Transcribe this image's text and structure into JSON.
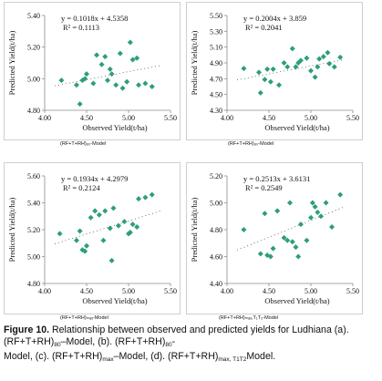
{
  "caption": {
    "label": "Figure 10.",
    "lines": [
      "Relationship between observed and predicted yields for Ludhiana (a).",
      "(RF+T+RH)",
      "80",
      "–Model, (b). (RF+T+RH)",
      "80",
      "-",
      "Model, (c). (RF+T+RH)",
      "max",
      "–Model, (d). (RF+T+RH)",
      "max, T1T2",
      "Model."
    ]
  },
  "chart_data": [
    {
      "type": "scatter",
      "panel": "a",
      "subcaption": "(RF+T+RH)₈₀-Model",
      "equation": "y = 0.1018x + 4.5358",
      "r2": "R² = 0.1113",
      "xlabel": "Observed Yield(t/ha)",
      "ylabel": "Predicted Yield(t/ha)",
      "xlim": [
        4.0,
        5.5
      ],
      "ylim": [
        4.8,
        5.4
      ],
      "xticks": [
        "4.00",
        "4.50",
        "5.00",
        "5.50"
      ],
      "yticks": [
        "4.80",
        "5.00",
        "5.20",
        "5.40"
      ],
      "marker_color": "#2e9e77",
      "points": [
        [
          4.2,
          4.99
        ],
        [
          4.38,
          4.96
        ],
        [
          4.42,
          4.84
        ],
        [
          4.45,
          4.99
        ],
        [
          4.48,
          5.0
        ],
        [
          4.5,
          5.03
        ],
        [
          4.58,
          4.97
        ],
        [
          4.62,
          5.15
        ],
        [
          4.68,
          5.09
        ],
        [
          4.72,
          5.14
        ],
        [
          4.75,
          4.99
        ],
        [
          4.78,
          5.06
        ],
        [
          4.8,
          5.03
        ],
        [
          4.85,
          4.96
        ],
        [
          4.9,
          5.16
        ],
        [
          4.93,
          4.94
        ],
        [
          4.98,
          4.98
        ],
        [
          5.02,
          5.23
        ],
        [
          5.05,
          5.12
        ],
        [
          5.1,
          5.13
        ],
        [
          5.12,
          4.96
        ],
        [
          5.2,
          4.97
        ],
        [
          5.28,
          4.95
        ]
      ],
      "trend": {
        "slope": 0.1018,
        "intercept": 4.5358
      }
    },
    {
      "type": "scatter",
      "panel": "b",
      "subcaption": "(RF+T+RH)₈₀-Model",
      "equation": "y = 0.2004x + 3.859",
      "r2": "R² = 0.2041",
      "xlabel": "Observed Yield(t/ha)",
      "ylabel": "Predicted Yield(t/ha)",
      "xlim": [
        4.0,
        5.5
      ],
      "ylim": [
        4.3,
        5.5
      ],
      "xticks": [
        "4.00",
        "4.50",
        "5.00",
        "5.50"
      ],
      "yticks": [
        "4.30",
        "4.50",
        "4.70",
        "4.90",
        "5.10",
        "5.30",
        "5.50"
      ],
      "marker_color": "#2e9e77",
      "points": [
        [
          4.2,
          4.83
        ],
        [
          4.38,
          4.78
        ],
        [
          4.4,
          4.52
        ],
        [
          4.45,
          4.69
        ],
        [
          4.48,
          4.82
        ],
        [
          4.52,
          4.66
        ],
        [
          4.55,
          4.82
        ],
        [
          4.62,
          4.62
        ],
        [
          4.68,
          4.9
        ],
        [
          4.72,
          4.85
        ],
        [
          4.78,
          5.08
        ],
        [
          4.82,
          4.85
        ],
        [
          4.85,
          4.9
        ],
        [
          4.88,
          4.93
        ],
        [
          4.95,
          4.96
        ],
        [
          5.0,
          4.8
        ],
        [
          5.05,
          4.72
        ],
        [
          5.08,
          4.85
        ],
        [
          5.1,
          4.95
        ],
        [
          5.15,
          4.98
        ],
        [
          5.2,
          5.03
        ],
        [
          5.22,
          4.89
        ],
        [
          5.28,
          4.85
        ],
        [
          5.35,
          4.97
        ]
      ],
      "trend": {
        "slope": 0.2004,
        "intercept": 3.859
      }
    },
    {
      "type": "scatter",
      "panel": "c",
      "subcaption": "(RF+T+RH)ₘₐₓ-Model",
      "equation": "y = 0.1934x + 4.2979",
      "r2": "R² = 0.2124",
      "xlabel": "Observed Yield(t/ha)",
      "ylabel": "Predicted Yield(t/ha)",
      "xlim": [
        4.0,
        5.5
      ],
      "ylim": [
        4.8,
        5.6
      ],
      "xticks": [
        "4.00",
        "4.50",
        "5.00",
        "5.50"
      ],
      "yticks": [
        "4.80",
        "5.00",
        "5.20",
        "5.40",
        "5.60"
      ],
      "marker_color": "#2e9e77",
      "points": [
        [
          4.18,
          5.17
        ],
        [
          4.38,
          5.12
        ],
        [
          4.42,
          5.19
        ],
        [
          4.45,
          5.05
        ],
        [
          4.48,
          5.04
        ],
        [
          4.5,
          5.08
        ],
        [
          4.55,
          5.29
        ],
        [
          4.6,
          5.34
        ],
        [
          4.65,
          5.31
        ],
        [
          4.7,
          5.12
        ],
        [
          4.72,
          5.34
        ],
        [
          4.78,
          5.21
        ],
        [
          4.8,
          4.97
        ],
        [
          4.82,
          5.36
        ],
        [
          4.88,
          5.23
        ],
        [
          4.95,
          5.26
        ],
        [
          5.0,
          5.17
        ],
        [
          5.02,
          5.18
        ],
        [
          5.05,
          5.24
        ],
        [
          5.1,
          5.22
        ],
        [
          5.12,
          5.43
        ],
        [
          5.2,
          5.44
        ],
        [
          5.28,
          5.46
        ]
      ],
      "trend": {
        "slope": 0.1934,
        "intercept": 4.2979
      }
    },
    {
      "type": "scatter",
      "panel": "d",
      "subcaption": "(RF+T+RH)ₘₐₓ,T₁T₂-Model",
      "equation": "y = 0.2513x + 3.6131",
      "r2": "R² = 0.2549",
      "xlabel": "Observed Yield(t/ha)",
      "ylabel": "Predicted Yield(t/ha)",
      "xlim": [
        4.0,
        5.5
      ],
      "ylim": [
        4.4,
        5.2
      ],
      "xticks": [
        "4.00",
        "4.50",
        "5.00",
        "5.50"
      ],
      "yticks": [
        "4.40",
        "4.60",
        "4.80",
        "5.00",
        "5.20"
      ],
      "marker_color": "#2e9e77",
      "points": [
        [
          4.2,
          4.8
        ],
        [
          4.4,
          4.62
        ],
        [
          4.45,
          4.92
        ],
        [
          4.48,
          4.61
        ],
        [
          4.52,
          4.6
        ],
        [
          4.55,
          4.66
        ],
        [
          4.6,
          4.94
        ],
        [
          4.68,
          4.74
        ],
        [
          4.72,
          4.72
        ],
        [
          4.75,
          5.0
        ],
        [
          4.78,
          4.71
        ],
        [
          4.82,
          4.67
        ],
        [
          4.85,
          4.6
        ],
        [
          4.88,
          4.84
        ],
        [
          4.95,
          4.72
        ],
        [
          5.0,
          4.89
        ],
        [
          5.02,
          5.0
        ],
        [
          5.05,
          4.97
        ],
        [
          5.08,
          4.93
        ],
        [
          5.12,
          4.9
        ],
        [
          5.18,
          5.0
        ],
        [
          5.25,
          4.82
        ],
        [
          5.35,
          5.06
        ]
      ],
      "trend": {
        "slope": 0.2513,
        "intercept": 3.6131
      }
    }
  ]
}
